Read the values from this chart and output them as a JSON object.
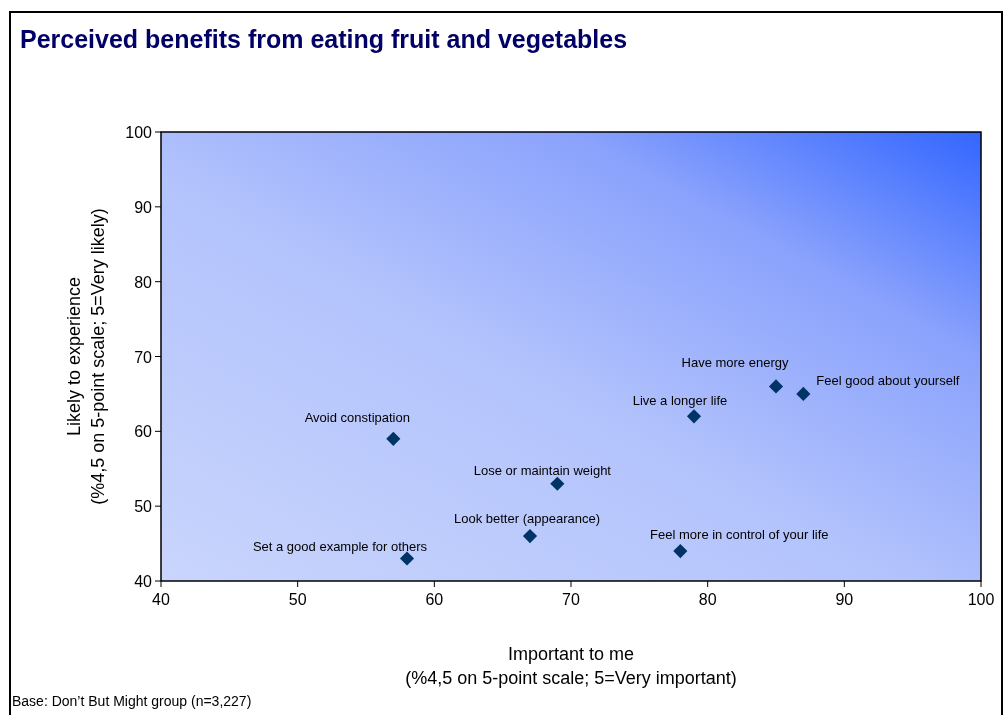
{
  "chart_data": {
    "type": "scatter",
    "title": "Perceived benefits from eating fruit and vegetables",
    "xlabel": "Important to me\n(%4,5 on 5-point scale; 5=Very important)",
    "ylabel": "Likely to experience\n(%4,5 on 5-point scale; 5=Very likely)",
    "series": [
      {
        "color": "#003366",
        "x": [
          57,
          58,
          67,
          69,
          78,
          79,
          85,
          87
        ],
        "values": [
          59,
          43,
          46,
          53,
          44,
          62,
          66,
          65
        ]
      }
    ],
    "marker": "diamond",
    "xlim": [
      40,
      100
    ],
    "xticks": [
      40,
      50,
      60,
      70,
      80,
      90,
      100
    ],
    "ylim": [
      40,
      100
    ],
    "yticks": [
      40,
      50,
      60,
      70,
      80,
      90,
      100
    ],
    "annotations": [
      {
        "text": "Avoid constipation",
        "x": 57,
        "y": 59
      },
      {
        "text": "Set a good example for others",
        "x": 58,
        "y": 43
      },
      {
        "text": "Look better (appearance)",
        "x": 67,
        "y": 46
      },
      {
        "text": "Lose or maintain weight",
        "x": 69,
        "y": 53
      },
      {
        "text": "Feel more in control of your life",
        "x": 78,
        "y": 44
      },
      {
        "text": "Live a longer life",
        "x": 79,
        "y": 62
      },
      {
        "text": "Have more energy",
        "x": 85,
        "y": 66
      },
      {
        "text": "Feel good about yourself",
        "x": 87,
        "y": 65
      },
      "Base: Don’t But Might group (n=3,227)"
    ]
  }
}
